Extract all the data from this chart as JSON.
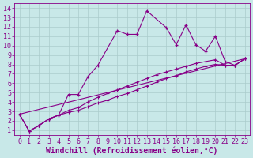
{
  "xlabel": "Windchill (Refroidissement éolien,°C)",
  "bg_color": "#c8e8e8",
  "line_color": "#880088",
  "xlim_min": -0.5,
  "xlim_max": 23.5,
  "ylim_min": 0.5,
  "ylim_max": 14.5,
  "xticks": [
    0,
    1,
    2,
    3,
    4,
    5,
    6,
    7,
    8,
    9,
    10,
    11,
    12,
    13,
    14,
    15,
    16,
    17,
    18,
    19,
    20,
    21,
    22,
    23
  ],
  "yticks": [
    1,
    2,
    3,
    4,
    5,
    6,
    7,
    8,
    9,
    10,
    11,
    12,
    13,
    14
  ],
  "line1_x": [
    0,
    1,
    2,
    3,
    4,
    5,
    6,
    7,
    8,
    10,
    11,
    12,
    13,
    15,
    16,
    17,
    18,
    19,
    20,
    21,
    22,
    23
  ],
  "line1_y": [
    2.7,
    0.9,
    1.5,
    2.2,
    2.6,
    4.8,
    4.8,
    6.7,
    7.9,
    11.6,
    11.2,
    11.2,
    13.7,
    11.9,
    10.1,
    12.2,
    10.1,
    9.4,
    11.0,
    8.3,
    7.9,
    8.6
  ],
  "line2_x": [
    0,
    1,
    2,
    3,
    4,
    5,
    6,
    7,
    8,
    9,
    10,
    11,
    12,
    13,
    14,
    15,
    16,
    17,
    18,
    19,
    20,
    21,
    22,
    23
  ],
  "line2_y": [
    2.7,
    0.9,
    1.5,
    2.2,
    2.6,
    3.1,
    3.4,
    4.0,
    4.5,
    4.9,
    5.3,
    5.7,
    6.1,
    6.5,
    6.9,
    7.2,
    7.5,
    7.8,
    8.1,
    8.3,
    8.5,
    7.9,
    7.9,
    8.6
  ],
  "line3_x": [
    0,
    1,
    2,
    3,
    4,
    5,
    6,
    7,
    8,
    9,
    10,
    11,
    12,
    13,
    14,
    15,
    16,
    17,
    18,
    19,
    20,
    21,
    22,
    23
  ],
  "line3_y": [
    2.7,
    0.9,
    1.5,
    2.2,
    2.6,
    2.9,
    3.1,
    3.5,
    3.9,
    4.2,
    4.6,
    4.9,
    5.3,
    5.7,
    6.1,
    6.5,
    6.8,
    7.2,
    7.5,
    7.8,
    8.0,
    7.9,
    7.9,
    8.6
  ],
  "line4_x": [
    0,
    23
  ],
  "line4_y": [
    2.7,
    8.6
  ],
  "grid_color": "#aacccc",
  "xlabel_fontsize": 7.0,
  "tick_fontsize": 6.0
}
